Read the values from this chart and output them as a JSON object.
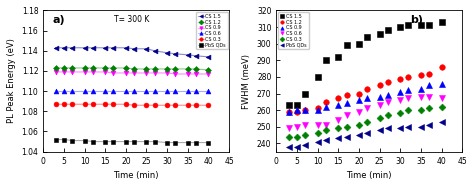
{
  "time_a": [
    3,
    5,
    7,
    10,
    12,
    15,
    17,
    20,
    22,
    25,
    27,
    30,
    32,
    35,
    37,
    40
  ],
  "panel_a": {
    "title": "a)",
    "annotation": "T= 300 K",
    "xlabel": "Time (min)",
    "ylabel": "PL Peak Energy (eV)",
    "ylim": [
      1.04,
      1.18
    ],
    "xlim": [
      0,
      45
    ],
    "yticks": [
      1.04,
      1.06,
      1.08,
      1.1,
      1.12,
      1.14,
      1.16,
      1.18
    ],
    "xticks": [
      0,
      5,
      10,
      15,
      20,
      25,
      30,
      35,
      40,
      45
    ],
    "series": [
      {
        "label": "PbS QDs",
        "color": "#000000",
        "linecolor": "#aaaaaa",
        "marker": "s",
        "markersize": 3.5,
        "values": [
          1.052,
          1.052,
          1.051,
          1.051,
          1.05,
          1.05,
          1.05,
          1.05,
          1.05,
          1.05,
          1.05,
          1.049,
          1.049,
          1.049,
          1.049,
          1.049
        ]
      },
      {
        "label": "CS 0.3",
        "color": "#ff0000",
        "linecolor": "#ff8888",
        "marker": "o",
        "markersize": 3.5,
        "values": [
          1.087,
          1.087,
          1.087,
          1.087,
          1.087,
          1.087,
          1.087,
          1.087,
          1.086,
          1.086,
          1.086,
          1.086,
          1.086,
          1.086,
          1.086,
          1.086
        ]
      },
      {
        "label": "CS 0.6",
        "color": "#0000ff",
        "linecolor": "#aaaaff",
        "marker": "^",
        "markersize": 3.5,
        "values": [
          1.1,
          1.1,
          1.1,
          1.1,
          1.1,
          1.1,
          1.1,
          1.1,
          1.1,
          1.1,
          1.1,
          1.1,
          1.1,
          1.1,
          1.1,
          1.1
        ]
      },
      {
        "label": "CS 0.9",
        "color": "#ff00ff",
        "linecolor": "#ff88ff",
        "marker": "v",
        "markersize": 3.5,
        "values": [
          1.119,
          1.119,
          1.119,
          1.119,
          1.119,
          1.119,
          1.118,
          1.118,
          1.118,
          1.118,
          1.118,
          1.118,
          1.117,
          1.117,
          1.117,
          1.117
        ]
      },
      {
        "label": "CS 1.2",
        "color": "#008000",
        "linecolor": "#88cc88",
        "marker": "D",
        "markersize": 3.0,
        "values": [
          1.123,
          1.123,
          1.123,
          1.123,
          1.123,
          1.123,
          1.123,
          1.123,
          1.122,
          1.122,
          1.122,
          1.122,
          1.122,
          1.122,
          1.122,
          1.121
        ]
      },
      {
        "label": "CS 1.5",
        "color": "#00008b",
        "linecolor": "#8888cc",
        "marker": "<",
        "markersize": 3.5,
        "values": [
          1.143,
          1.143,
          1.143,
          1.143,
          1.143,
          1.143,
          1.143,
          1.143,
          1.142,
          1.142,
          1.14,
          1.138,
          1.137,
          1.136,
          1.135,
          1.134
        ]
      }
    ],
    "legend_order": [
      5,
      4,
      3,
      2,
      1,
      0
    ]
  },
  "time_b": [
    3,
    5,
    7,
    10,
    12,
    15,
    17,
    20,
    22,
    25,
    27,
    30,
    32,
    35,
    37,
    40
  ],
  "panel_b": {
    "title": "b)",
    "xlabel": "Time (min)",
    "ylabel": "FWHM (meV)",
    "ylim": [
      235,
      320
    ],
    "xlim": [
      0,
      45
    ],
    "yticks": [
      240,
      250,
      260,
      270,
      280,
      290,
      300,
      310,
      320
    ],
    "xticks": [
      0,
      5,
      10,
      15,
      20,
      25,
      30,
      35,
      40,
      45
    ],
    "series": [
      {
        "label": "CS 1.5",
        "color": "#000000",
        "marker": "s",
        "markersize": 4,
        "values": [
          263,
          263,
          270,
          280,
          290,
          292,
          299,
          300,
          304,
          306,
          308,
          310,
          311,
          311,
          311,
          313
        ]
      },
      {
        "label": "CS 1.2",
        "color": "#ff0000",
        "marker": "o",
        "markersize": 4,
        "values": [
          259,
          259,
          260,
          261,
          265,
          267,
          269,
          270,
          273,
          275,
          277,
          279,
          280,
          281,
          282,
          286
        ]
      },
      {
        "label": "CS 0.9",
        "color": "#0000ff",
        "marker": "^",
        "markersize": 4,
        "values": [
          259,
          260,
          260,
          260,
          262,
          263,
          264,
          266,
          267,
          268,
          269,
          271,
          272,
          273,
          275,
          276
        ]
      },
      {
        "label": "CS 0.6",
        "color": "#ff00ff",
        "marker": "v",
        "markersize": 4,
        "values": [
          249,
          250,
          251,
          251,
          251,
          254,
          257,
          259,
          261,
          263,
          265,
          266,
          267,
          268,
          268,
          267
        ]
      },
      {
        "label": "CS 0.3",
        "color": "#008000",
        "marker": "D",
        "markersize": 3.5,
        "values": [
          244,
          244,
          245,
          246,
          248,
          249,
          250,
          251,
          253,
          255,
          257,
          258,
          260,
          260,
          261,
          262
        ]
      },
      {
        "label": "PbS QDs",
        "color": "#00008b",
        "marker": "<",
        "markersize": 4,
        "values": [
          238,
          238,
          239,
          241,
          242,
          243,
          244,
          245,
          246,
          248,
          249,
          249,
          250,
          250,
          251,
          253
        ]
      }
    ]
  }
}
